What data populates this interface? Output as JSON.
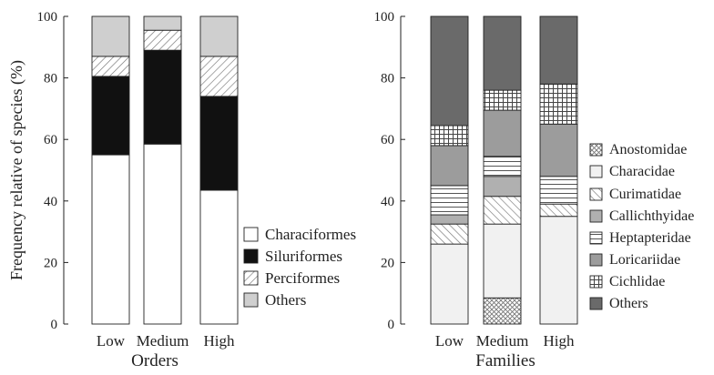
{
  "figure": {
    "ylabel": "Frequency relative of species (%)"
  },
  "chart_data": [
    {
      "type": "bar",
      "stacked": true,
      "xlabel": "Orders",
      "ylabel": "Frequency relative of species (%)",
      "ylim": [
        0,
        100
      ],
      "yticks": [
        0,
        20,
        40,
        60,
        80,
        100
      ],
      "categories": [
        "Low",
        "Medium",
        "High"
      ],
      "legend_position": "bottom-right",
      "series": [
        {
          "name": "Characiformes",
          "values": [
            55,
            58.5,
            43.5
          ],
          "pattern": "white"
        },
        {
          "name": "Siluriformes",
          "values": [
            25.5,
            30.5,
            30.5
          ],
          "pattern": "black"
        },
        {
          "name": "Perciformes",
          "values": [
            6.5,
            6.5,
            13
          ],
          "pattern": "diag"
        },
        {
          "name": "Others",
          "values": [
            13,
            4.5,
            13
          ],
          "pattern": "lightgray"
        }
      ]
    },
    {
      "type": "bar",
      "stacked": true,
      "xlabel": "Families",
      "ylabel": "",
      "ylim": [
        0,
        100
      ],
      "yticks": [
        0,
        20,
        40,
        60,
        80,
        100
      ],
      "categories": [
        "Low",
        "Medium",
        "High"
      ],
      "legend_position": "right",
      "series": [
        {
          "name": "Anostomidae",
          "values": [
            0,
            8.5,
            0
          ],
          "pattern": "crosshatch"
        },
        {
          "name": "Characidae",
          "values": [
            26,
            24,
            35
          ],
          "pattern": "verylight"
        },
        {
          "name": "Curimatidae",
          "values": [
            6.5,
            9,
            4
          ],
          "pattern": "diagback"
        },
        {
          "name": "Callichthyidae",
          "values": [
            3,
            6.5,
            0
          ],
          "pattern": "gray"
        },
        {
          "name": "Heptapteridae",
          "values": [
            9.5,
            6.5,
            9
          ],
          "pattern": "hlines"
        },
        {
          "name": "Loricariidae",
          "values": [
            13,
            15,
            17
          ],
          "pattern": "midgray"
        },
        {
          "name": "Cichlidae",
          "values": [
            6.5,
            6.5,
            13
          ],
          "pattern": "grid"
        },
        {
          "name": "Others",
          "values": [
            35.5,
            24,
            22
          ],
          "pattern": "dark"
        }
      ]
    }
  ]
}
